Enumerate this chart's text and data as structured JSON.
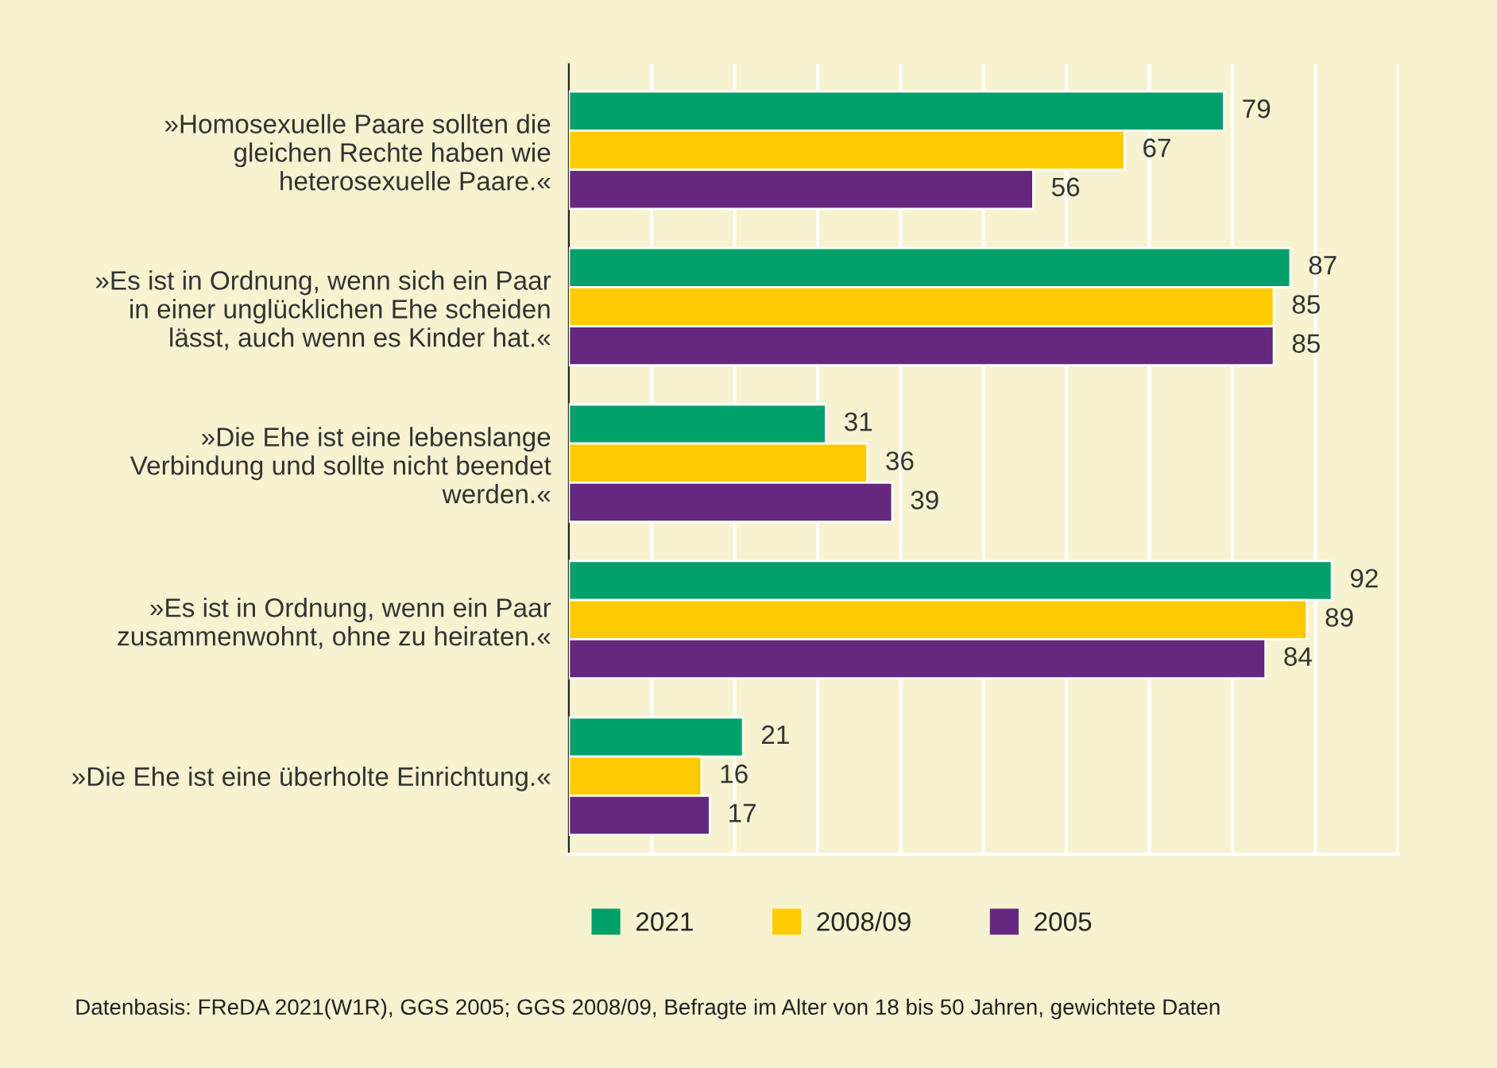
{
  "chart_data": {
    "type": "bar",
    "orientation": "horizontal",
    "categories": [
      "»Homosexuelle Paare sollten die\ngleichen Rechte haben wie\nheterosexuelle Paare.«",
      "»Es ist in Ordnung, wenn sich ein Paar\nin einer unglücklichen Ehe scheiden\nlässt, auch wenn es Kinder hat.«",
      "»Die Ehe ist eine lebenslange\nVerbindung und sollte nicht beendet\nwerden.«",
      "»Es ist in Ordnung, wenn ein Paar\nzusammenwohnt, ohne zu heiraten.«",
      "»Die Ehe ist eine überholte Einrichtung.«"
    ],
    "series": [
      {
        "name": "2021",
        "color": "#00a06a",
        "values": [
          79,
          87,
          31,
          92,
          21
        ]
      },
      {
        "name": "2008/09",
        "color": "#ffcb00",
        "values": [
          67,
          85,
          36,
          89,
          16
        ]
      },
      {
        "name": "2005",
        "color": "#66287f",
        "values": [
          56,
          85,
          39,
          84,
          17
        ]
      }
    ],
    "xlim": [
      0,
      100
    ],
    "xticks": [
      {
        "value": 10,
        "label": null
      },
      {
        "value": 20,
        "label": null
      },
      {
        "value": 30,
        "label": null
      },
      {
        "value": 40,
        "label": null
      },
      {
        "value": 50,
        "label": null
      },
      {
        "value": 60,
        "label": null
      },
      {
        "value": 70,
        "label": null
      },
      {
        "value": 80,
        "label": null
      },
      {
        "value": 90,
        "label": null
      },
      {
        "value": 100,
        "label": null
      }
    ],
    "tick_labels": "y",
    "grid": "x",
    "legend": "bottom",
    "data_labels": true,
    "annotations": [
      "Datenbasis: FReDA 2021(W1R), GGS 2005; GGS 2008/09, Befragte im Alter von 18 bis 50 Jahren, gewichtete Daten"
    ]
  }
}
